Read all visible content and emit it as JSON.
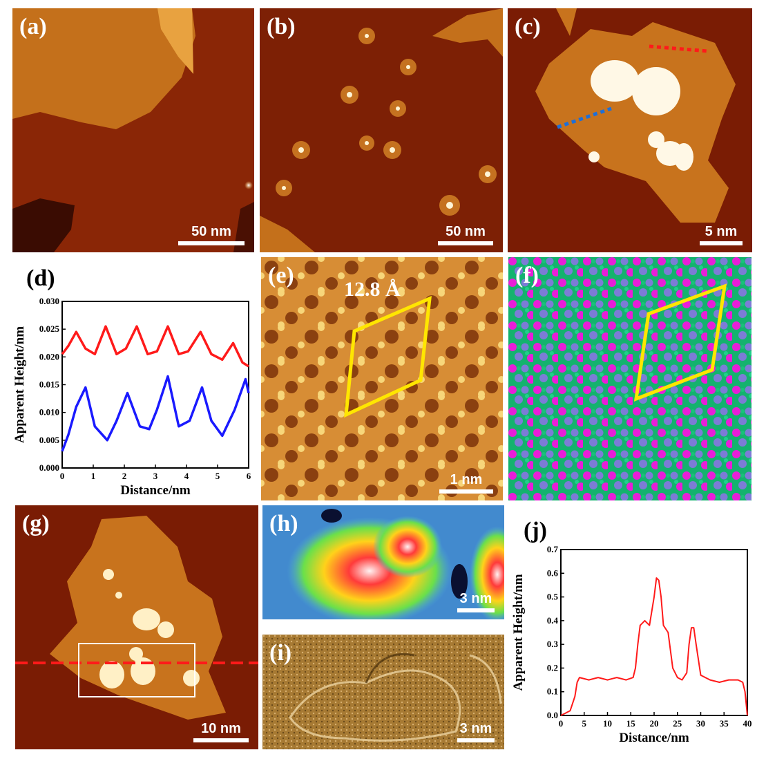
{
  "figure": {
    "panels": {
      "a": {
        "label": "(a)",
        "scale_text": "50 nm"
      },
      "b": {
        "label": "(b)",
        "scale_text": "50 nm"
      },
      "c": {
        "label": "(c)",
        "scale_text": "5 nm"
      },
      "d": {
        "label": "(d)"
      },
      "e": {
        "label": "(e)",
        "scale_text": "1 nm",
        "annotation": "12.8 Å"
      },
      "f": {
        "label": "(f)"
      },
      "g": {
        "label": "(g)",
        "scale_text": "10 nm"
      },
      "h": {
        "label": "(h)",
        "scale_text": "3 nm"
      },
      "i": {
        "label": "(i)",
        "scale_text": "3 nm"
      },
      "j": {
        "label": "(j)"
      }
    },
    "colors": {
      "stm_background": "#7a1c04",
      "stm_island": "#c8731d",
      "stm_bright": "#fff1c4",
      "line_red": "#ff1a1a",
      "line_blue": "#1a1aff",
      "unit_cell": "#ffe600",
      "atom_magenta": "#e81ed8",
      "atom_blue": "#7c7cd6",
      "atom_green": "#19c27a"
    }
  },
  "chart_data": [
    {
      "panel": "d",
      "type": "line",
      "xlabel": "Distance/nm",
      "ylabel": "Apparent Height/nm",
      "xlim": [
        0,
        6
      ],
      "ylim": [
        0,
        0.03
      ],
      "xticks": [
        "0",
        "1",
        "2",
        "3",
        "4",
        "5",
        "6"
      ],
      "yticks": [
        "0.000",
        "0.005",
        "0.010",
        "0.015",
        "0.020",
        "0.025",
        "0.030"
      ],
      "series": [
        {
          "color": "#ff1a1a",
          "x": [
            0,
            0.2,
            0.45,
            0.75,
            1.05,
            1.4,
            1.75,
            2.05,
            2.4,
            2.75,
            3.05,
            3.4,
            3.75,
            4.05,
            4.45,
            4.8,
            5.15,
            5.5,
            5.8,
            6.0
          ],
          "y": [
            0.0205,
            0.022,
            0.0245,
            0.0215,
            0.0205,
            0.0255,
            0.0205,
            0.0215,
            0.0255,
            0.0205,
            0.021,
            0.0255,
            0.0205,
            0.021,
            0.0245,
            0.0205,
            0.0195,
            0.0225,
            0.019,
            0.0183
          ]
        },
        {
          "color": "#1a1aff",
          "x": [
            0,
            0.2,
            0.45,
            0.75,
            1.05,
            1.45,
            1.75,
            2.1,
            2.5,
            2.8,
            3.05,
            3.4,
            3.75,
            4.1,
            4.5,
            4.8,
            5.15,
            5.55,
            5.9,
            6.0
          ],
          "y": [
            0.003,
            0.006,
            0.011,
            0.0145,
            0.0075,
            0.005,
            0.0085,
            0.0135,
            0.0075,
            0.007,
            0.0105,
            0.0165,
            0.0075,
            0.0085,
            0.0145,
            0.0085,
            0.0058,
            0.0105,
            0.016,
            0.0135
          ]
        }
      ]
    },
    {
      "panel": "j",
      "type": "line",
      "xlabel": "Distance/nm",
      "ylabel": "Apparent Height/nm",
      "xlim": [
        0,
        40
      ],
      "ylim": [
        0,
        0.7
      ],
      "xticks": [
        "0",
        "5",
        "10",
        "15",
        "20",
        "25",
        "30",
        "35",
        "40"
      ],
      "yticks": [
        "0.0",
        "0.1",
        "0.2",
        "0.3",
        "0.4",
        "0.5",
        "0.6",
        "0.7"
      ],
      "series": [
        {
          "color": "#ff1a1a",
          "x": [
            0,
            1,
            2,
            3,
            3.5,
            4,
            6,
            8,
            10,
            12,
            14,
            15.5,
            16,
            16.5,
            17,
            18,
            19,
            20,
            20.5,
            21,
            21.5,
            22,
            23,
            24,
            25,
            26,
            27,
            27.5,
            28,
            28.5,
            29,
            30,
            32,
            34,
            36,
            38,
            39,
            39.5,
            40
          ],
          "y": [
            0.0,
            0.01,
            0.02,
            0.08,
            0.14,
            0.16,
            0.15,
            0.16,
            0.15,
            0.16,
            0.15,
            0.16,
            0.2,
            0.3,
            0.38,
            0.4,
            0.38,
            0.5,
            0.58,
            0.57,
            0.5,
            0.38,
            0.35,
            0.2,
            0.16,
            0.15,
            0.18,
            0.3,
            0.37,
            0.37,
            0.3,
            0.17,
            0.15,
            0.14,
            0.15,
            0.15,
            0.14,
            0.1,
            0.0
          ]
        }
      ]
    }
  ]
}
